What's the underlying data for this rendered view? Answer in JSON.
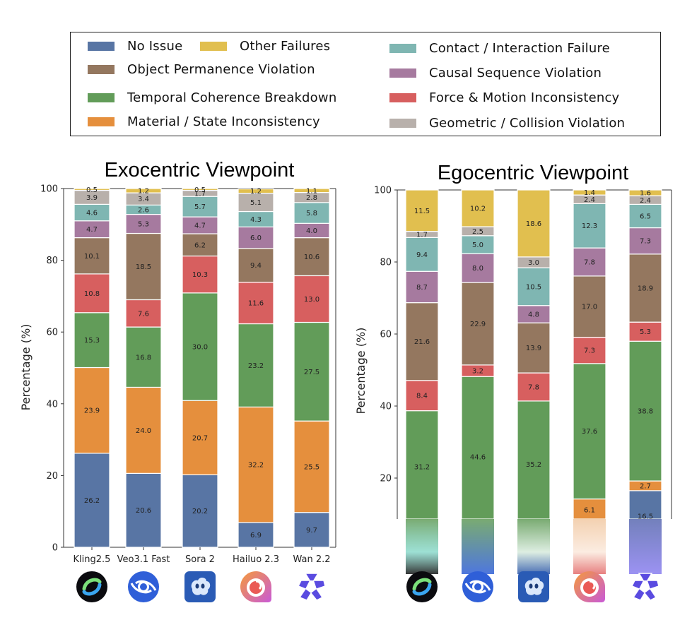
{
  "legend": {
    "items": [
      {
        "key": "no_issue",
        "label": "No Issue",
        "color": "#5875a4"
      },
      {
        "key": "other",
        "label": "Other Failures",
        "color": "#e1bf4f"
      },
      {
        "key": "object_perm",
        "label": "Object Permanence Violation",
        "color": "#94775f"
      },
      {
        "key": "temporal",
        "label": "Temporal Coherence Breakdown",
        "color": "#629c59"
      },
      {
        "key": "material",
        "label": "Material / State Inconsistency",
        "color": "#e58f3d"
      },
      {
        "key": "contact",
        "label": "Contact / Interaction Failure",
        "color": "#7fb6b2"
      },
      {
        "key": "causal",
        "label": "Causal Sequence Violation",
        "color": "#a67a9f"
      },
      {
        "key": "force",
        "label": "Force & Motion Inconsistency",
        "color": "#d75f5f"
      },
      {
        "key": "geometric",
        "label": "Geometric / Collision Violation",
        "color": "#b8b0ab"
      }
    ]
  },
  "chart_data": [
    {
      "type": "bar",
      "stacked": true,
      "title": "Exocentric Viewpoint",
      "xlabel": "",
      "ylabel": "Percentage (%)",
      "ylim": [
        0,
        100
      ],
      "yticks": [
        0,
        20,
        40,
        60,
        80,
        100
      ],
      "categories": [
        "Kling2.5",
        "Veo3.1 Fast",
        "Sora 2",
        "Hailuo 2.3",
        "Wan 2.2"
      ],
      "stack_order": [
        "no_issue",
        "material",
        "temporal",
        "force",
        "object_perm",
        "causal",
        "contact",
        "geometric",
        "other"
      ],
      "series": [
        {
          "key": "no_issue",
          "name": "No Issue",
          "values": [
            26.2,
            20.6,
            20.2,
            6.9,
            9.7
          ]
        },
        {
          "key": "material",
          "name": "Material / State Inconsistency",
          "values": [
            23.9,
            24.0,
            20.7,
            32.2,
            25.5
          ]
        },
        {
          "key": "temporal",
          "name": "Temporal Coherence Breakdown",
          "values": [
            15.3,
            16.8,
            30.0,
            23.2,
            27.5
          ]
        },
        {
          "key": "force",
          "name": "Force & Motion Inconsistency",
          "values": [
            10.8,
            7.6,
            10.3,
            11.6,
            13.0
          ]
        },
        {
          "key": "object_perm",
          "name": "Object Permanence Violation",
          "values": [
            10.1,
            18.5,
            6.2,
            9.4,
            10.6
          ]
        },
        {
          "key": "causal",
          "name": "Causal Sequence Violation",
          "values": [
            4.7,
            5.3,
            4.7,
            6.0,
            4.0
          ]
        },
        {
          "key": "contact",
          "name": "Contact / Interaction Failure",
          "values": [
            4.6,
            2.6,
            5.7,
            4.3,
            5.8
          ]
        },
        {
          "key": "geometric",
          "name": "Geometric / Collision Violation",
          "values": [
            3.9,
            3.4,
            1.7,
            5.1,
            2.8
          ]
        },
        {
          "key": "other",
          "name": "Other Failures",
          "values": [
            0.5,
            1.2,
            0.5,
            1.2,
            1.1
          ]
        }
      ],
      "logos": [
        "kling-logo",
        "veo-logo",
        "sora-logo",
        "hailuo-logo",
        "wan-logo"
      ]
    },
    {
      "type": "bar",
      "stacked": true,
      "title": "Egocentric Viewpoint",
      "xlabel": "",
      "ylabel": "Percentage (%)",
      "ylim": [
        0,
        100
      ],
      "yticks": [
        20,
        40,
        60,
        80,
        100
      ],
      "categories": [
        "Kling2.5",
        "Veo3.1 Fast",
        "Sora 2",
        "Hailuo 2.3",
        "Wan 2.2"
      ],
      "stack_order": [
        "no_issue",
        "material",
        "temporal",
        "force",
        "object_perm",
        "causal",
        "contact",
        "geometric",
        "other"
      ],
      "series": [
        {
          "key": "no_issue",
          "name": "No Issue",
          "values": [
            7.5,
            3.6,
            6.2,
            8.1,
            16.5
          ]
        },
        {
          "key": "material",
          "name": "Material / State Inconsistency",
          "values": [
            0,
            0,
            0,
            6.1,
            2.7
          ]
        },
        {
          "key": "temporal",
          "name": "Temporal Coherence Breakdown",
          "values": [
            31.2,
            44.6,
            35.2,
            37.6,
            38.8
          ]
        },
        {
          "key": "force",
          "name": "Force & Motion Inconsistency",
          "values": [
            8.4,
            3.2,
            7.8,
            7.3,
            5.3
          ]
        },
        {
          "key": "object_perm",
          "name": "Object Permanence Violation",
          "values": [
            21.6,
            22.9,
            13.9,
            17.0,
            18.9
          ]
        },
        {
          "key": "causal",
          "name": "Causal Sequence Violation",
          "values": [
            8.7,
            8.0,
            4.8,
            7.8,
            7.3
          ]
        },
        {
          "key": "contact",
          "name": "Contact / Interaction Failure",
          "values": [
            9.4,
            5.0,
            10.5,
            12.3,
            6.5
          ]
        },
        {
          "key": "geometric",
          "name": "Geometric / Collision Violation",
          "values": [
            1.7,
            2.5,
            3.0,
            2.4,
            2.4
          ]
        },
        {
          "key": "other",
          "name": "Other Failures",
          "values": [
            11.5,
            10.2,
            18.6,
            1.4,
            1.6
          ]
        }
      ],
      "hidden_labels": {
        "no_issue": [
          true,
          true,
          true,
          true,
          false
        ]
      },
      "logos": [
        "kling-logo",
        "veo-logo",
        "sora-logo",
        "hailuo-logo",
        "wan-logo"
      ]
    }
  ]
}
